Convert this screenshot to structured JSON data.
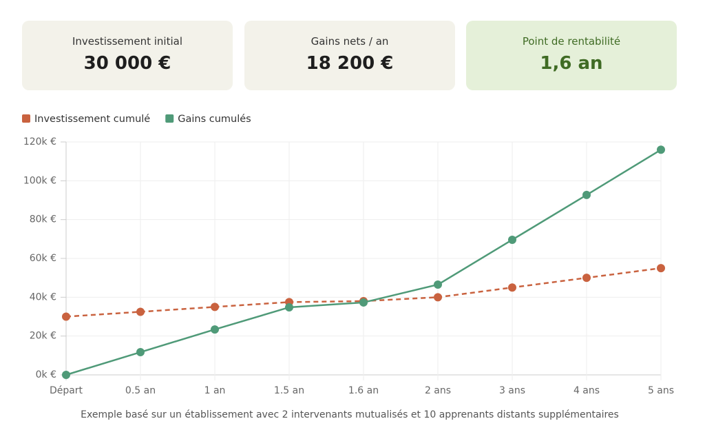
{
  "cards": [
    {
      "label": "Investissement initial",
      "value": "30 000 €"
    },
    {
      "label": "Gains nets / an",
      "value": "18 200 €"
    },
    {
      "label": "Point de rentabilité",
      "value": "1,6 an"
    }
  ],
  "chart_data": {
    "type": "line",
    "categories": [
      "Départ",
      "0.5 an",
      "1 an",
      "1.5 an",
      "1.6 an",
      "2 ans",
      "3 ans",
      "4 ans",
      "5 ans"
    ],
    "series": [
      {
        "name": "Investissement cumulé",
        "color": "#c9623f",
        "dashed": true,
        "values": [
          30000,
          32500,
          35000,
          37500,
          38000,
          40000,
          45000,
          50000,
          55000
        ]
      },
      {
        "name": "Gains cumulés",
        "color": "#4f9a78",
        "dashed": false,
        "values": [
          0,
          11700,
          23400,
          34800,
          37300,
          46500,
          69600,
          92700,
          116000
        ]
      }
    ],
    "ylim": [
      0,
      120000
    ],
    "yticks": [
      {
        "value": 0,
        "label": "0k €"
      },
      {
        "value": 20000,
        "label": "20k €"
      },
      {
        "value": 40000,
        "label": "40k €"
      },
      {
        "value": 60000,
        "label": "60k €"
      },
      {
        "value": 80000,
        "label": "80k €"
      },
      {
        "value": 100000,
        "label": "100k €"
      },
      {
        "value": 120000,
        "label": "120k €"
      }
    ],
    "grid": true,
    "caption": "Exemple basé sur un établissement avec 2 intervenants mutualisés et 10 apprenants distants supplémentaires"
  }
}
